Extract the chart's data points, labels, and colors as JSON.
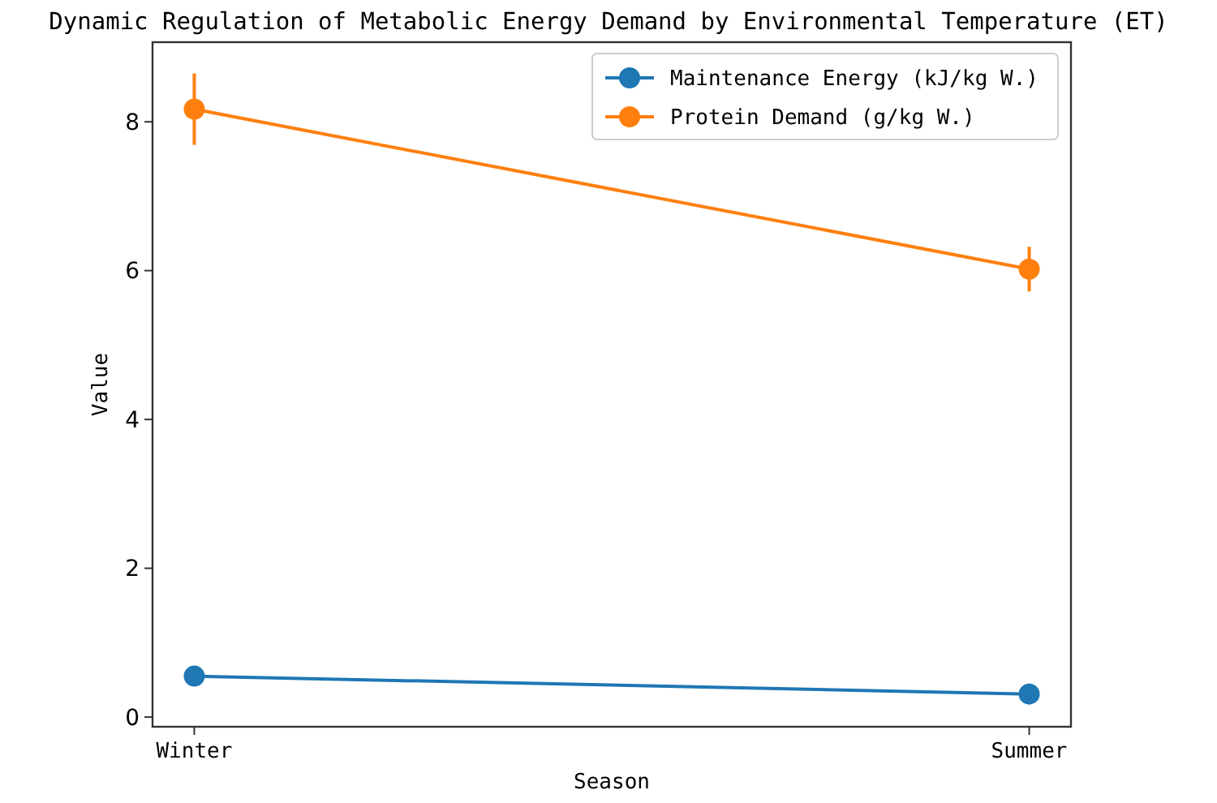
{
  "chart_data": {
    "type": "line",
    "title": "Dynamic Regulation of Metabolic Energy Demand by Environmental Temperature (ET)",
    "xlabel": "Season",
    "ylabel": "Value",
    "categories": [
      "Winter",
      "Summer"
    ],
    "series": [
      {
        "name": "Maintenance Energy (kJ/kg W.)",
        "color": "#1f77b4",
        "values": [
          0.55,
          0.31
        ]
      },
      {
        "name": "Protein Demand (g/kg W.)",
        "color": "#ff7f0e",
        "values": [
          8.17,
          6.02
        ],
        "errors": [
          0.48,
          0.3
        ]
      }
    ],
    "ylim": [
      -0.13,
      9.07
    ],
    "yticks": [
      0,
      2,
      4,
      6,
      8
    ],
    "marker": "circle",
    "legend": "top right",
    "grid": false
  }
}
